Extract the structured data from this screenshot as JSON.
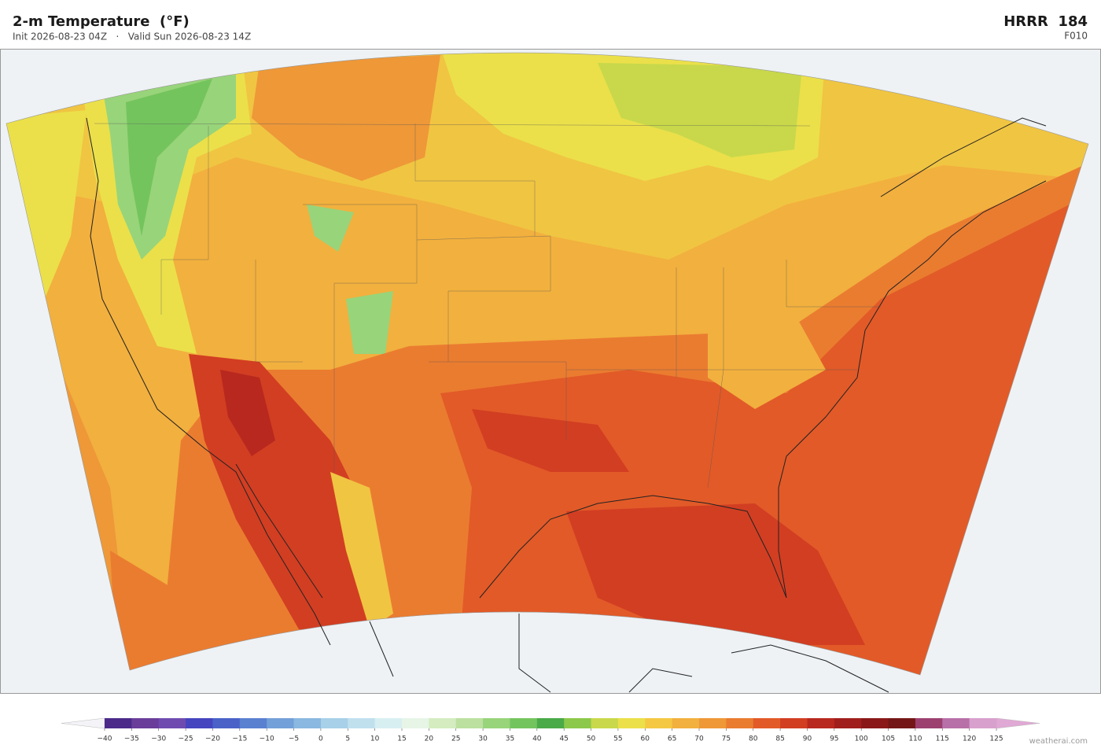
{
  "header": {
    "title": "2-m Temperature  (°F)",
    "subtitle": "Init 2026-08-23 04Z   ·   Valid Sun 2026-08-23 14Z",
    "model": "HRRR  184",
    "forecast_hour": "F010"
  },
  "colorbar": {
    "ticks": [
      {
        "value": -40,
        "label": "−40"
      },
      {
        "value": -35,
        "label": "−35"
      },
      {
        "value": -30,
        "label": "−30"
      },
      {
        "value": -25,
        "label": "−25"
      },
      {
        "value": -20,
        "label": "−20"
      },
      {
        "value": -15,
        "label": "−15"
      },
      {
        "value": -10,
        "label": "−10"
      },
      {
        "value": -5,
        "label": "−5"
      },
      0,
      5,
      10,
      15,
      20,
      25,
      30,
      35,
      40,
      45,
      50,
      55,
      60,
      65,
      70,
      75,
      80,
      85,
      90,
      95,
      100,
      105,
      110,
      115,
      120,
      125
    ],
    "colors": [
      "#4b2a8a",
      "#6a3d9a",
      "#6f4bb0",
      "#4545c0",
      "#4a62c8",
      "#5a80d0",
      "#73a0d8",
      "#8ab8e0",
      "#a8d0e8",
      "#c0e0ee",
      "#d8eff2",
      "#e6f5e6",
      "#d4ecc0",
      "#bce0a0",
      "#98d47a",
      "#74c45e",
      "#4aaa48",
      "#8cc84a",
      "#c8d84a",
      "#ebe04a",
      "#f4c842",
      "#f2b03e",
      "#ee9838",
      "#ea7c30",
      "#e25a28",
      "#d23e22",
      "#b8281e",
      "#a01e1c",
      "#8a1818",
      "#741616",
      "#9c4070",
      "#b870a8",
      "#d8a0cc"
    ],
    "under_color": "#f4f4f8",
    "over_color": "#e0a8d4"
  },
  "footer": {
    "credit": "weatherai.com"
  }
}
